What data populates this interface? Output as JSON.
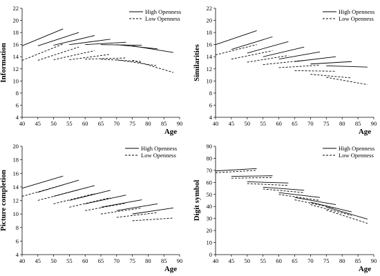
{
  "chart_data": [
    {
      "type": "line",
      "ylabel": "Information",
      "xlabel": "Age",
      "xlim": [
        40,
        90
      ],
      "ylim": [
        4,
        22
      ],
      "xticks": [
        40,
        45,
        50,
        55,
        60,
        65,
        70,
        75,
        80,
        85,
        90
      ],
      "yticks": [
        4,
        6,
        8,
        10,
        12,
        14,
        16,
        18,
        20,
        22
      ],
      "grid": false,
      "legend": "top-right",
      "series": [
        {
          "name": "High Openness",
          "style": "solid",
          "segments": [
            [
              [
                40,
                15.8
              ],
              [
                53,
                18.6
              ]
            ],
            [
              [
                45,
                15.8
              ],
              [
                58,
                18.0
              ]
            ],
            [
              [
                50,
                15.9
              ],
              [
                63,
                17.5
              ]
            ],
            [
              [
                55,
                16.0
              ],
              [
                68,
                16.9
              ]
            ],
            [
              [
                60,
                16.0
              ],
              [
                73,
                16.4
              ]
            ],
            [
              [
                65,
                16.0
              ],
              [
                78,
                15.9
              ]
            ],
            [
              [
                70,
                16.0
              ],
              [
                83,
                15.3
              ]
            ],
            [
              [
                75,
                15.8
              ],
              [
                88,
                14.7
              ]
            ]
          ]
        },
        {
          "name": "Low Openness",
          "style": "dashed",
          "segments": [
            [
              [
                40,
                13.4
              ],
              [
                53,
                16.1
              ]
            ],
            [
              [
                45,
                13.4
              ],
              [
                58,
                15.6
              ]
            ],
            [
              [
                50,
                13.5
              ],
              [
                63,
                15.0
              ]
            ],
            [
              [
                55,
                13.5
              ],
              [
                68,
                14.4
              ]
            ],
            [
              [
                60,
                13.6
              ],
              [
                73,
                13.8
              ]
            ],
            [
              [
                65,
                13.6
              ],
              [
                78,
                13.2
              ]
            ],
            [
              [
                70,
                13.5
              ],
              [
                83,
                12.5
              ]
            ],
            [
              [
                75,
                13.4
              ],
              [
                88,
                11.4
              ]
            ]
          ]
        }
      ]
    },
    {
      "type": "line",
      "ylabel": "Similarities",
      "xlabel": "Age",
      "xlim": [
        40,
        90
      ],
      "ylim": [
        4,
        22
      ],
      "xticks": [
        40,
        45,
        50,
        55,
        60,
        65,
        70,
        75,
        80,
        85,
        90
      ],
      "yticks": [
        4,
        6,
        8,
        10,
        12,
        14,
        16,
        18,
        20,
        22
      ],
      "grid": false,
      "legend": "top-right",
      "series": [
        {
          "name": "High Openness",
          "style": "solid",
          "segments": [
            [
              [
                40,
                16.0
              ],
              [
                53,
                18.3
              ]
            ],
            [
              [
                45,
                15.2
              ],
              [
                58,
                17.3
              ]
            ],
            [
              [
                50,
                14.6
              ],
              [
                63,
                16.5
              ]
            ],
            [
              [
                55,
                14.0
              ],
              [
                68,
                15.6
              ]
            ],
            [
              [
                60,
                13.6
              ],
              [
                73,
                14.8
              ]
            ],
            [
              [
                65,
                13.2
              ],
              [
                78,
                14.0
              ]
            ],
            [
              [
                70,
                12.8
              ],
              [
                83,
                13.2
              ]
            ],
            [
              [
                75,
                12.5
              ],
              [
                88,
                12.3
              ]
            ]
          ]
        },
        {
          "name": "Low Openness",
          "style": "dashed",
          "segments": [
            [
              [
                40,
                14.3
              ],
              [
                53,
                16.0
              ]
            ],
            [
              [
                45,
                13.6
              ],
              [
                58,
                15.0
              ]
            ],
            [
              [
                50,
                13.1
              ],
              [
                63,
                14.2
              ]
            ],
            [
              [
                55,
                12.7
              ],
              [
                68,
                13.4
              ]
            ],
            [
              [
                60,
                12.2
              ],
              [
                73,
                12.6
              ]
            ],
            [
              [
                65,
                11.7
              ],
              [
                78,
                11.6
              ]
            ],
            [
              [
                70,
                11.1
              ],
              [
                83,
                10.5
              ]
            ],
            [
              [
                75,
                10.6
              ],
              [
                88,
                9.4
              ]
            ]
          ]
        }
      ]
    },
    {
      "type": "line",
      "ylabel": "Picture completion",
      "xlabel": "Age",
      "xlim": [
        40,
        90
      ],
      "ylim": [
        4,
        20
      ],
      "xticks": [
        40,
        45,
        50,
        55,
        60,
        65,
        70,
        75,
        80,
        85,
        90
      ],
      "yticks": [
        4,
        6,
        8,
        10,
        12,
        14,
        16,
        18,
        20
      ],
      "grid": false,
      "legend": "top-right",
      "series": [
        {
          "name": "High Openness",
          "style": "solid",
          "segments": [
            [
              [
                40,
                13.8
              ],
              [
                53,
                15.6
              ]
            ],
            [
              [
                45,
                13.2
              ],
              [
                58,
                15.0
              ]
            ],
            [
              [
                50,
                12.6
              ],
              [
                63,
                14.2
              ]
            ],
            [
              [
                55,
                12.0
              ],
              [
                68,
                13.5
              ]
            ],
            [
              [
                60,
                11.5
              ],
              [
                73,
                12.8
              ]
            ],
            [
              [
                65,
                11.0
              ],
              [
                78,
                12.1
              ]
            ],
            [
              [
                70,
                10.5
              ],
              [
                83,
                11.5
              ]
            ],
            [
              [
                75,
                10.0
              ],
              [
                88,
                10.9
              ]
            ]
          ]
        },
        {
          "name": "Low Openness",
          "style": "dashed",
          "segments": [
            [
              [
                40,
                12.6
              ],
              [
                53,
                14.3
              ]
            ],
            [
              [
                45,
                12.0
              ],
              [
                58,
                13.6
              ]
            ],
            [
              [
                50,
                11.5
              ],
              [
                63,
                13.0
              ]
            ],
            [
              [
                55,
                11.0
              ],
              [
                68,
                12.4
              ]
            ],
            [
              [
                60,
                10.5
              ],
              [
                73,
                11.6
              ]
            ],
            [
              [
                65,
                10.0
              ],
              [
                78,
                10.9
              ]
            ],
            [
              [
                70,
                9.5
              ],
              [
                83,
                10.2
              ]
            ],
            [
              [
                75,
                9.0
              ],
              [
                88,
                9.4
              ]
            ]
          ]
        }
      ]
    },
    {
      "type": "line",
      "ylabel": "Digit symbol",
      "xlabel": "Age",
      "xlim": [
        40,
        90
      ],
      "ylim": [
        0,
        90
      ],
      "xticks": [
        40,
        45,
        50,
        55,
        60,
        65,
        70,
        75,
        80,
        85,
        90
      ],
      "yticks": [
        0,
        10,
        20,
        30,
        40,
        50,
        60,
        70,
        80,
        90
      ],
      "grid": false,
      "legend": "top-right",
      "series": [
        {
          "name": "High Openness",
          "style": "solid",
          "segments": [
            [
              [
                40,
                69.5
              ],
              [
                53,
                71.5
              ]
            ],
            [
              [
                45,
                65.0
              ],
              [
                58,
                65.5
              ]
            ],
            [
              [
                50,
                60.5
              ],
              [
                63,
                59.5
              ]
            ],
            [
              [
                55,
                56.0
              ],
              [
                68,
                53.5
              ]
            ],
            [
              [
                60,
                51.5
              ],
              [
                73,
                47.5
              ]
            ],
            [
              [
                65,
                47.5
              ],
              [
                78,
                41.5
              ]
            ],
            [
              [
                70,
                43.5
              ],
              [
                83,
                35.5
              ]
            ],
            [
              [
                75,
                39.5
              ],
              [
                88,
                29.5
              ]
            ]
          ]
        },
        {
          "name": "Low Openness",
          "style": "dashed",
          "segments": [
            [
              [
                40,
                68.0
              ],
              [
                53,
                70.0
              ]
            ],
            [
              [
                45,
                63.5
              ],
              [
                58,
                64.0
              ]
            ],
            [
              [
                50,
                59.0
              ],
              [
                63,
                57.5
              ]
            ],
            [
              [
                55,
                54.5
              ],
              [
                68,
                51.5
              ]
            ],
            [
              [
                60,
                50.0
              ],
              [
                73,
                45.0
              ]
            ],
            [
              [
                65,
                45.5
              ],
              [
                78,
                38.5
              ]
            ],
            [
              [
                70,
                41.5
              ],
              [
                83,
                32.5
              ]
            ],
            [
              [
                75,
                37.0
              ],
              [
                88,
                26.0
              ]
            ]
          ]
        }
      ]
    }
  ]
}
